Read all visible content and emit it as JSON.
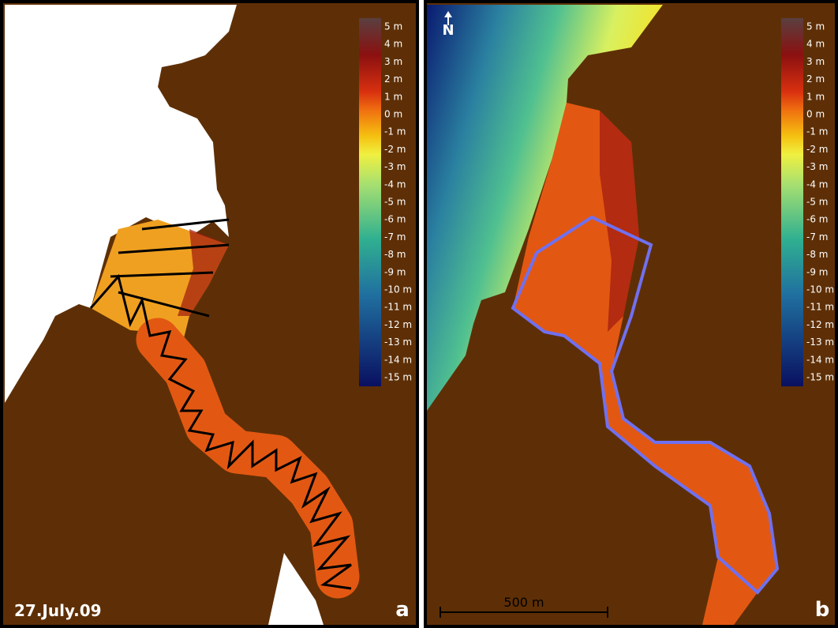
{
  "panels": [
    {
      "label": "a",
      "date": "27.July.09",
      "colorbar": {
        "labels": [
          "5 m",
          "4 m",
          "3 m",
          "2 m",
          "1 m",
          "0 m",
          "-1 m",
          "-2 m",
          "-3 m",
          "-4 m",
          "-5 m",
          "-6 m",
          "-7 m",
          "-8 m",
          "-9 m",
          "-10 m",
          "-11 m",
          "-12 m",
          "-13 m",
          "-14 m",
          "-15 m"
        ]
      }
    },
    {
      "label": "b",
      "north": "N",
      "scale_bar": "500 m",
      "colorbar": {
        "labels": [
          "5 m",
          "4 m",
          "3 m",
          "2 m",
          "1 m",
          "0 m",
          "-1 m",
          "-2 m",
          "-3 m",
          "-4 m",
          "-5 m",
          "-6 m",
          "-7 m",
          "-8 m",
          "-9 m",
          "-10 m",
          "-11 m",
          "-12 m",
          "-13 m",
          "-14 m",
          "-15 m"
        ]
      }
    }
  ]
}
